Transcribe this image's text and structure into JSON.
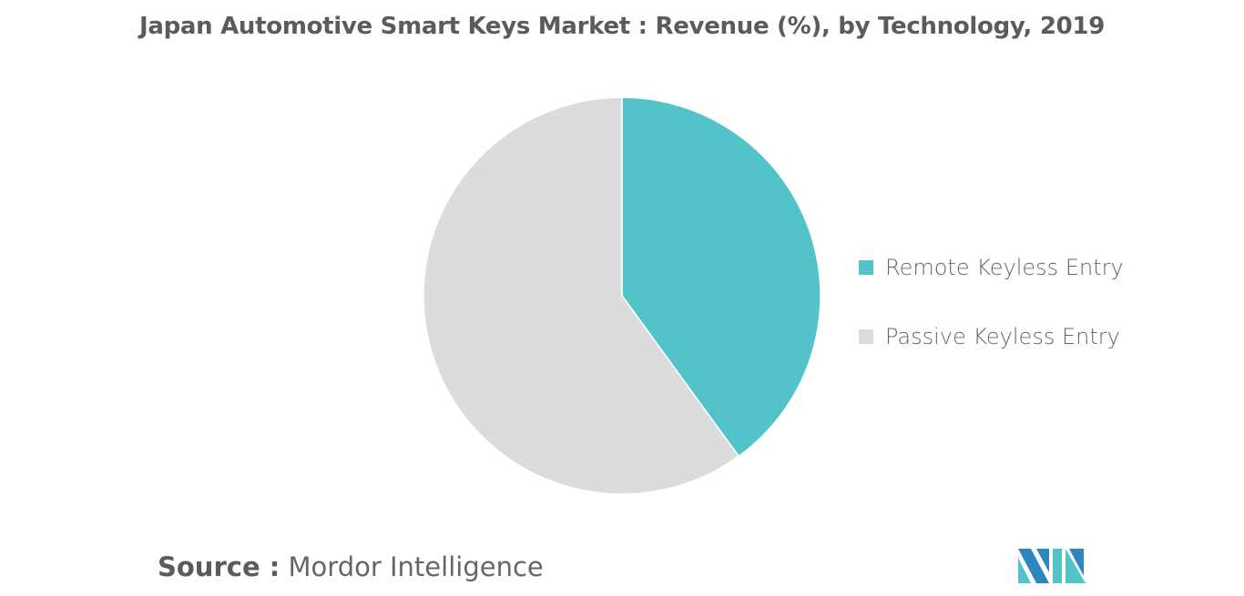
{
  "chart_data": {
    "type": "pie",
    "title": "Japan Automotive Smart Keys Market : Revenue (%), by Technology, 2019",
    "slices": [
      {
        "name": "Remote Keyless Entry",
        "value": 40,
        "color": "#51c3c9"
      },
      {
        "name": "Passive Keyless Entry",
        "value": 60,
        "color": "#dcdcdc"
      }
    ],
    "start_angle": "top, clockwise",
    "legend_placement": "right"
  },
  "source": {
    "label": "Source :",
    "value": "Mordor Intelligence"
  },
  "logo": {
    "text": "Mordor Intelligence",
    "colors": [
      "#2e86c1",
      "#51c3c9"
    ]
  }
}
